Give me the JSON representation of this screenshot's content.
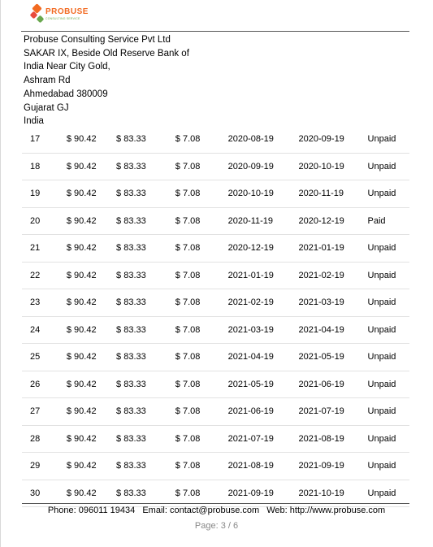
{
  "header": {
    "logo_text": "PROBUSE",
    "logo_subtext": "CONSULTING SERVICE",
    "brand_colors": {
      "orange": "#f26a21",
      "green": "#6aa84f",
      "red": "#e84c3d"
    }
  },
  "address": [
    "Probuse Consulting Service Pvt Ltd",
    "SAKAR IX, Beside Old Reserve Bank of",
    "India Near City Gold,",
    "Ashram Rd",
    "Ahmedabad 380009",
    "Gujarat GJ",
    "India"
  ],
  "rows": [
    [
      "17",
      "$ 90.42",
      "$ 83.33",
      "$ 7.08",
      "2020-08-19",
      "2020-09-19",
      "Unpaid"
    ],
    [
      "18",
      "$ 90.42",
      "$ 83.33",
      "$ 7.08",
      "2020-09-19",
      "2020-10-19",
      "Unpaid"
    ],
    [
      "19",
      "$ 90.42",
      "$ 83.33",
      "$ 7.08",
      "2020-10-19",
      "2020-11-19",
      "Unpaid"
    ],
    [
      "20",
      "$ 90.42",
      "$ 83.33",
      "$ 7.08",
      "2020-11-19",
      "2020-12-19",
      "Paid"
    ],
    [
      "21",
      "$ 90.42",
      "$ 83.33",
      "$ 7.08",
      "2020-12-19",
      "2021-01-19",
      "Unpaid"
    ],
    [
      "22",
      "$ 90.42",
      "$ 83.33",
      "$ 7.08",
      "2021-01-19",
      "2021-02-19",
      "Unpaid"
    ],
    [
      "23",
      "$ 90.42",
      "$ 83.33",
      "$ 7.08",
      "2021-02-19",
      "2021-03-19",
      "Unpaid"
    ],
    [
      "24",
      "$ 90.42",
      "$ 83.33",
      "$ 7.08",
      "2021-03-19",
      "2021-04-19",
      "Unpaid"
    ],
    [
      "25",
      "$ 90.42",
      "$ 83.33",
      "$ 7.08",
      "2021-04-19",
      "2021-05-19",
      "Unpaid"
    ],
    [
      "26",
      "$ 90.42",
      "$ 83.33",
      "$ 7.08",
      "2021-05-19",
      "2021-06-19",
      "Unpaid"
    ],
    [
      "27",
      "$ 90.42",
      "$ 83.33",
      "$ 7.08",
      "2021-06-19",
      "2021-07-19",
      "Unpaid"
    ],
    [
      "28",
      "$ 90.42",
      "$ 83.33",
      "$ 7.08",
      "2021-07-19",
      "2021-08-19",
      "Unpaid"
    ],
    [
      "29",
      "$ 90.42",
      "$ 83.33",
      "$ 7.08",
      "2021-08-19",
      "2021-09-19",
      "Unpaid"
    ],
    [
      "30",
      "$ 90.42",
      "$ 83.33",
      "$ 7.08",
      "2021-09-19",
      "2021-10-19",
      "Unpaid"
    ]
  ],
  "footer": {
    "phone": "Phone: 096011 19434",
    "email": "Email: contact@probuse.com",
    "web": "Web: http://www.probuse.com"
  },
  "page_indicator": "Page: 3 / 6"
}
